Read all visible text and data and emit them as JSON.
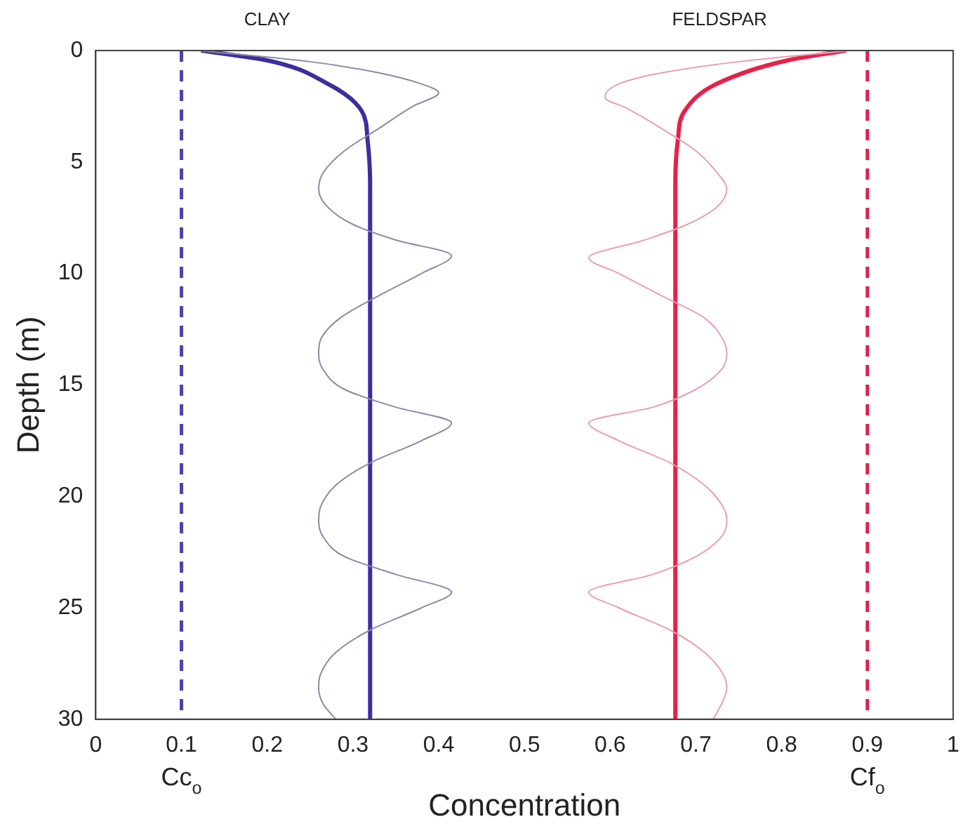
{
  "chart_data": {
    "type": "line",
    "xlabel": "Concentration",
    "ylabel": "Depth (m)",
    "xlim": [
      0,
      1
    ],
    "xticks": [
      0,
      0.1,
      0.2,
      0.3,
      0.4,
      0.5,
      0.6,
      0.7,
      0.8,
      0.9,
      1
    ],
    "ylim": [
      30,
      0
    ],
    "yticks": [
      0,
      5,
      10,
      15,
      20,
      25,
      30
    ],
    "grid": false,
    "legend": false,
    "marker": "none",
    "series": [
      {
        "color": "#8a8aa8",
        "x": [
          0.12,
          0.25,
          0.33,
          0.38,
          0.4,
          0.37,
          0.33,
          0.29,
          0.265,
          0.26,
          0.27,
          0.3,
          0.35,
          0.415,
          0.38,
          0.33,
          0.285,
          0.262,
          0.26,
          0.265,
          0.29,
          0.35,
          0.415,
          0.38,
          0.32,
          0.28,
          0.262,
          0.26,
          0.265,
          0.29,
          0.35,
          0.415,
          0.38,
          0.32,
          0.28,
          0.262,
          0.26,
          0.265,
          0.28
        ],
        "values": [
          0,
          0.5,
          1,
          1.5,
          1.9,
          2.5,
          3.5,
          4.5,
          5.5,
          6.2,
          7,
          7.8,
          8.5,
          9.2,
          10,
          11,
          12,
          13,
          13.6,
          14.3,
          15.2,
          16,
          16.7,
          17.5,
          18.5,
          19.5,
          20.5,
          21.1,
          21.8,
          22.7,
          23.5,
          24.3,
          25,
          26,
          27,
          28,
          28.6,
          29.3,
          30
        ]
      },
      {
        "color": "#e8a0b0",
        "x": [
          0.88,
          0.75,
          0.66,
          0.61,
          0.594,
          0.62,
          0.66,
          0.7,
          0.725,
          0.736,
          0.725,
          0.69,
          0.64,
          0.575,
          0.61,
          0.66,
          0.71,
          0.732,
          0.736,
          0.73,
          0.7,
          0.65,
          0.575,
          0.61,
          0.67,
          0.71,
          0.732,
          0.736,
          0.73,
          0.7,
          0.65,
          0.575,
          0.61,
          0.67,
          0.71,
          0.732,
          0.736,
          0.73,
          0.72
        ],
        "values": [
          0,
          0.5,
          1,
          1.5,
          2.1,
          2.6,
          3.5,
          4.5,
          5.5,
          6.2,
          7,
          7.8,
          8.5,
          9.3,
          10,
          11,
          12,
          13,
          13.6,
          14.3,
          15.2,
          16,
          16.7,
          17.5,
          18.5,
          19.5,
          20.5,
          21.1,
          21.8,
          22.7,
          23.5,
          24.3,
          25,
          26,
          27,
          28,
          28.6,
          29.3,
          30
        ]
      },
      {
        "color": "#3b2f9e",
        "x": [
          0.123,
          0.2,
          0.27,
          0.31,
          0.317,
          0.32,
          0.32
        ],
        "values": [
          0,
          0.44,
          1.48,
          2.7,
          4,
          6,
          30
        ]
      },
      {
        "color": "#e8204a",
        "x": [
          0.875,
          0.807,
          0.725,
          0.687,
          0.679,
          0.676,
          0.676
        ],
        "values": [
          0,
          0.44,
          1.48,
          2.7,
          4,
          6,
          30
        ]
      }
    ],
    "ref_lines": [
      {
        "axis": "x",
        "value": 0.1,
        "label": "Cc$_{o}$",
        "color": "#4a44b0",
        "line_style": "dashed"
      },
      {
        "axis": "x",
        "value": 0.9,
        "label": "Cf$_{o}$",
        "color": "#e0204a",
        "line_style": "dashed"
      }
    ],
    "annotations": [
      "CLAY",
      "FELDSPAR"
    ]
  }
}
